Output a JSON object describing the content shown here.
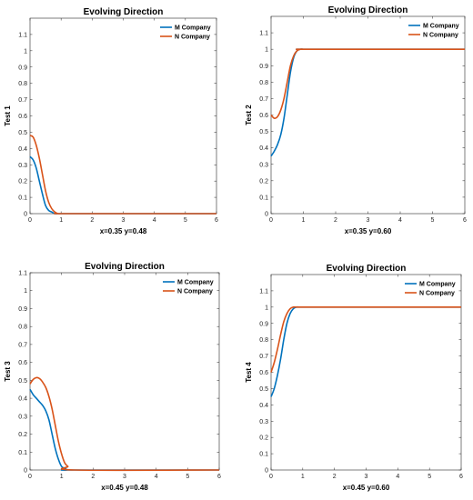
{
  "chart_data": [
    {
      "type": "line",
      "title": "Evolving Direction",
      "xlabel": "x=0.35  y=0.48",
      "ylabel": "Test 1",
      "xlim": [
        0,
        6
      ],
      "ylim": [
        0,
        1.2
      ],
      "xticks": [
        0,
        1,
        2,
        3,
        4,
        5,
        6
      ],
      "yticks": [
        0,
        0.1,
        0.2,
        0.3,
        0.4,
        0.5,
        0.6,
        0.7,
        0.8,
        0.9,
        1,
        1.1
      ],
      "grid": false,
      "legend_position": "top-right",
      "series": [
        {
          "name": "M Company",
          "color": "#0072BD",
          "x": [
            0,
            0.1,
            0.2,
            0.3,
            0.4,
            0.5,
            0.6,
            0.7,
            0.8,
            0.9,
            1.0,
            1.2,
            6
          ],
          "y": [
            0.35,
            0.33,
            0.28,
            0.2,
            0.12,
            0.05,
            0.02,
            0.01,
            0.0,
            0.0,
            0.0,
            0.0,
            0.0
          ]
        },
        {
          "name": "N Company",
          "color": "#D95319",
          "x": [
            0,
            0.1,
            0.2,
            0.3,
            0.4,
            0.5,
            0.6,
            0.7,
            0.8,
            0.9,
            1.0,
            1.2,
            6
          ],
          "y": [
            0.48,
            0.47,
            0.42,
            0.34,
            0.24,
            0.14,
            0.07,
            0.03,
            0.01,
            0.0,
            0.0,
            0.0,
            0.0
          ]
        }
      ]
    },
    {
      "type": "line",
      "title": "Evolving Direction",
      "xlabel": "x=0.35  y=0.60",
      "ylabel": "Test 2",
      "xlim": [
        0,
        6
      ],
      "ylim": [
        0,
        1.2
      ],
      "xticks": [
        0,
        1,
        2,
        3,
        4,
        5,
        6
      ],
      "yticks": [
        0,
        0.1,
        0.2,
        0.3,
        0.4,
        0.5,
        0.6,
        0.7,
        0.8,
        0.9,
        1,
        1.1
      ],
      "grid": false,
      "legend_position": "top-right",
      "series": [
        {
          "name": "M Company",
          "color": "#0072BD",
          "x": [
            0,
            0.1,
            0.2,
            0.3,
            0.4,
            0.5,
            0.6,
            0.7,
            0.8,
            0.9,
            1.0,
            1.2,
            6
          ],
          "y": [
            0.35,
            0.38,
            0.42,
            0.48,
            0.58,
            0.72,
            0.86,
            0.95,
            0.99,
            1.0,
            1.0,
            1.0,
            1.0
          ]
        },
        {
          "name": "N Company",
          "color": "#D95319",
          "x": [
            0,
            0.1,
            0.2,
            0.3,
            0.4,
            0.5,
            0.6,
            0.7,
            0.8,
            0.9,
            1.0,
            1.2,
            6
          ],
          "y": [
            0.6,
            0.58,
            0.59,
            0.63,
            0.7,
            0.8,
            0.9,
            0.96,
            0.99,
            1.0,
            1.0,
            1.0,
            1.0
          ]
        }
      ]
    },
    {
      "type": "line",
      "title": "Evolving Direction",
      "xlabel": "x=0.45  y=0.48",
      "ylabel": "Test 3",
      "xlim": [
        0,
        6
      ],
      "ylim": [
        0,
        1.1
      ],
      "xticks": [
        0,
        1,
        2,
        3,
        4,
        5,
        6
      ],
      "yticks": [
        0,
        0.1,
        0.2,
        0.3,
        0.4,
        0.5,
        0.6,
        0.7,
        0.8,
        0.9,
        1,
        1.1
      ],
      "grid": false,
      "legend_position": "top-right",
      "series": [
        {
          "name": "M Company",
          "color": "#0072BD",
          "x": [
            0,
            0.1,
            0.2,
            0.3,
            0.4,
            0.5,
            0.6,
            0.7,
            0.8,
            0.9,
            1.0,
            1.1,
            1.2,
            1.4,
            6
          ],
          "y": [
            0.45,
            0.42,
            0.4,
            0.38,
            0.36,
            0.33,
            0.28,
            0.2,
            0.12,
            0.06,
            0.02,
            0.01,
            0.0,
            0.0,
            0.0
          ]
        },
        {
          "name": "N Company",
          "color": "#D95319",
          "x": [
            0,
            0.1,
            0.2,
            0.3,
            0.4,
            0.5,
            0.6,
            0.7,
            0.8,
            0.9,
            1.0,
            1.1,
            1.2,
            1.4,
            6
          ],
          "y": [
            0.48,
            0.505,
            0.515,
            0.51,
            0.49,
            0.46,
            0.41,
            0.34,
            0.25,
            0.16,
            0.09,
            0.04,
            0.02,
            0.0,
            0.0
          ]
        }
      ]
    },
    {
      "type": "line",
      "title": "Evolving Direction",
      "xlabel": "x=0.45  y=0.60",
      "ylabel": "Test 4",
      "xlim": [
        0,
        6
      ],
      "ylim": [
        0,
        1.2
      ],
      "xticks": [
        0,
        1,
        2,
        3,
        4,
        5,
        6
      ],
      "yticks": [
        0,
        0.1,
        0.2,
        0.3,
        0.4,
        0.5,
        0.6,
        0.7,
        0.8,
        0.9,
        1,
        1.1
      ],
      "grid": false,
      "legend_position": "top-right",
      "series": [
        {
          "name": "M Company",
          "color": "#0072BD",
          "x": [
            0,
            0.1,
            0.2,
            0.3,
            0.4,
            0.5,
            0.6,
            0.7,
            0.8,
            0.9,
            1.0,
            1.2,
            6
          ],
          "y": [
            0.45,
            0.5,
            0.58,
            0.68,
            0.8,
            0.9,
            0.96,
            0.99,
            1.0,
            1.0,
            1.0,
            1.0,
            1.0
          ]
        },
        {
          "name": "N Company",
          "color": "#D95319",
          "x": [
            0,
            0.1,
            0.2,
            0.3,
            0.4,
            0.5,
            0.6,
            0.7,
            0.8,
            0.9,
            1.0,
            1.2,
            6
          ],
          "y": [
            0.6,
            0.66,
            0.74,
            0.83,
            0.91,
            0.96,
            0.99,
            1.0,
            1.0,
            1.0,
            1.0,
            1.0,
            1.0
          ]
        }
      ]
    }
  ]
}
